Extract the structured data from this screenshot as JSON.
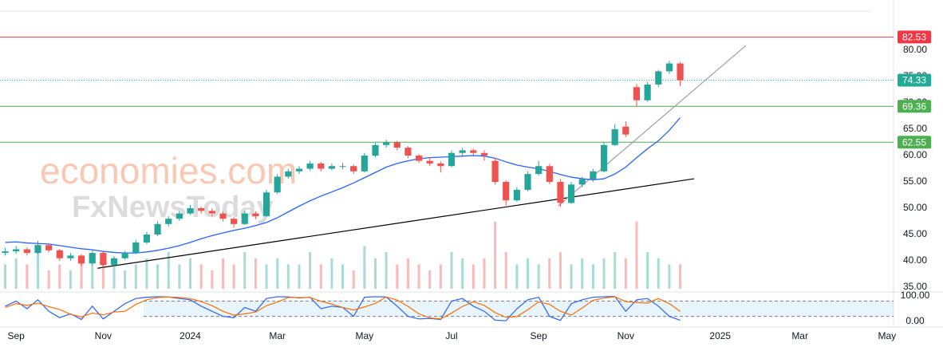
{
  "chart_data": {
    "type": "candlestick",
    "watermark": [
      "economies.com",
      "FxNewsToday"
    ],
    "xlim": [
      -0.37,
      20.15
    ],
    "xticks": [
      {
        "value": 0,
        "label": "Sep"
      },
      {
        "value": 2,
        "label": "Nov"
      },
      {
        "value": 4,
        "label": "2024"
      },
      {
        "value": 6,
        "label": "Mar"
      },
      {
        "value": 8,
        "label": "May"
      },
      {
        "value": 10,
        "label": "Jul"
      },
      {
        "value": 12,
        "label": "Sep"
      },
      {
        "value": 14,
        "label": "Nov"
      },
      {
        "value": 16.17,
        "label": "2025"
      },
      {
        "value": 18,
        "label": "Mar"
      },
      {
        "value": 20,
        "label": "May"
      }
    ],
    "ylim": [
      34.85,
      89.55
    ],
    "yticks": [
      {
        "value": 35,
        "label": "35.00"
      },
      {
        "value": 40,
        "label": "40.00"
      },
      {
        "value": 45,
        "label": "45.00"
      },
      {
        "value": 50,
        "label": "50.00"
      },
      {
        "value": 55,
        "label": "55.00"
      },
      {
        "value": 60,
        "label": "60.00"
      },
      {
        "value": 65,
        "label": "65.00"
      },
      {
        "value": 70,
        "label": "70.00"
      },
      {
        "value": 75,
        "label": "75.00"
      },
      {
        "value": 80,
        "label": "80.00"
      }
    ],
    "grid": false,
    "up_color": "#26a69a",
    "down_color": "#ef5350",
    "x": [
      -0.25,
      0,
      0.25,
      0.5,
      0.75,
      1,
      1.25,
      1.5,
      1.75,
      2,
      2.25,
      2.5,
      2.75,
      3,
      3.25,
      3.5,
      3.75,
      4,
      4.25,
      4.5,
      4.75,
      5,
      5.25,
      5.5,
      5.75,
      6,
      6.25,
      6.5,
      6.75,
      7,
      7.25,
      7.5,
      7.75,
      8,
      8.25,
      8.5,
      8.75,
      9,
      9.25,
      9.5,
      9.75,
      10,
      10.25,
      10.5,
      10.75,
      11,
      11.25,
      11.5,
      11.75,
      12,
      12.25,
      12.5,
      12.75,
      13,
      13.25,
      13.5,
      13.75,
      14,
      14.25,
      14.5,
      14.75,
      15,
      15.25
    ],
    "ohlc": [
      [
        41.5,
        42.5,
        41.0,
        41.8
      ],
      [
        41.8,
        42.8,
        41.3,
        42.2
      ],
      [
        42.2,
        42.6,
        41.0,
        41.5
      ],
      [
        41.5,
        43.8,
        41.3,
        43.0
      ],
      [
        43.0,
        43.3,
        41.6,
        42.0
      ],
      [
        42.0,
        42.3,
        40.0,
        40.5
      ],
      [
        40.5,
        41.5,
        40.0,
        41.0
      ],
      [
        41.0,
        41.3,
        39.0,
        39.5
      ],
      [
        39.5,
        42.0,
        39.2,
        41.5
      ],
      [
        41.5,
        41.8,
        38.6,
        39.2
      ],
      [
        39.2,
        40.9,
        39.0,
        40.5
      ],
      [
        40.5,
        41.9,
        40.2,
        41.5
      ],
      [
        41.5,
        44.0,
        41.3,
        43.5
      ],
      [
        43.5,
        45.5,
        43.2,
        45.0
      ],
      [
        45.0,
        47.5,
        44.7,
        47.0
      ],
      [
        47.0,
        48.5,
        46.5,
        48.0
      ],
      [
        48.0,
        49.5,
        47.6,
        49.0
      ],
      [
        49.0,
        50.6,
        48.7,
        50.0
      ],
      [
        50.0,
        50.3,
        49.0,
        49.5
      ],
      [
        49.5,
        50.0,
        48.5,
        49.0
      ],
      [
        49.0,
        49.4,
        47.5,
        48.0
      ],
      [
        48.0,
        48.3,
        46.3,
        47.0
      ],
      [
        47.0,
        49.5,
        46.8,
        49.0
      ],
      [
        49.0,
        49.4,
        47.9,
        48.5
      ],
      [
        48.5,
        53.5,
        48.3,
        53.0
      ],
      [
        53.0,
        56.5,
        52.7,
        56.0
      ],
      [
        56.0,
        57.5,
        55.6,
        57.0
      ],
      [
        57.0,
        58.0,
        56.5,
        57.5
      ],
      [
        57.5,
        59.0,
        57.2,
        58.5
      ],
      [
        58.5,
        58.8,
        57.0,
        57.5
      ],
      [
        57.5,
        58.5,
        57.2,
        58.0
      ],
      [
        58.0,
        58.6,
        57.4,
        58.0
      ],
      [
        58.0,
        58.3,
        56.5,
        57.0
      ],
      [
        57.0,
        60.5,
        56.8,
        60.0
      ],
      [
        60.0,
        62.4,
        59.7,
        62.0
      ],
      [
        62.0,
        63.0,
        61.5,
        62.5
      ],
      [
        62.5,
        62.8,
        61.0,
        61.5
      ],
      [
        61.5,
        61.8,
        59.5,
        60.0
      ],
      [
        60.0,
        60.3,
        58.6,
        59.0
      ],
      [
        59.0,
        59.5,
        58.0,
        58.5
      ],
      [
        58.5,
        58.9,
        56.8,
        58.0
      ],
      [
        58.0,
        61.0,
        57.8,
        60.5
      ],
      [
        60.5,
        61.5,
        60.0,
        61.0
      ],
      [
        61.0,
        61.3,
        59.8,
        60.5
      ],
      [
        60.5,
        61.0,
        59.0,
        60.0
      ],
      [
        59.0,
        59.5,
        54.5,
        55.0
      ],
      [
        55.0,
        55.3,
        50.5,
        51.5
      ],
      [
        51.5,
        54.0,
        51.2,
        53.5
      ],
      [
        53.5,
        57.0,
        53.2,
        56.5
      ],
      [
        56.5,
        59.0,
        56.2,
        58.0
      ],
      [
        58.0,
        58.4,
        54.6,
        55.0
      ],
      [
        55.0,
        55.5,
        50.3,
        51.0
      ],
      [
        51.0,
        55.0,
        50.8,
        54.5
      ],
      [
        54.5,
        56.0,
        54.0,
        55.5
      ],
      [
        55.5,
        57.5,
        55.0,
        57.0
      ],
      [
        57.0,
        62.5,
        56.8,
        62.0
      ],
      [
        62.0,
        66.0,
        61.8,
        65.0
      ],
      [
        65.5,
        66.5,
        63.5,
        64.0
      ],
      [
        73.0,
        73.6,
        69.3,
        70.5
      ],
      [
        70.5,
        74.0,
        70.2,
        73.5
      ],
      [
        73.5,
        76.3,
        73.0,
        76.0
      ],
      [
        76.0,
        78.0,
        75.5,
        77.5
      ],
      [
        77.5,
        77.8,
        73.2,
        74.3
      ]
    ],
    "volume": [
      4,
      5,
      4,
      6,
      3,
      4,
      3,
      5,
      4,
      6,
      4,
      3,
      4,
      5,
      4,
      6,
      4,
      5,
      4,
      3,
      5,
      4,
      6,
      5,
      4,
      5,
      4,
      4,
      6,
      4,
      5,
      4,
      3,
      7,
      5,
      6,
      4,
      5,
      4,
      3,
      4,
      6,
      5,
      4,
      5,
      11,
      6,
      4,
      5,
      4,
      5,
      6,
      4,
      5,
      4,
      5,
      6,
      5,
      11,
      6,
      5,
      4,
      4
    ],
    "volume_ylim": [
      0,
      12
    ],
    "ma": {
      "color": "#2962ff",
      "values": [
        43.5,
        43.6,
        43.4,
        43.3,
        43.2,
        42.9,
        42.6,
        42.3,
        42.1,
        41.8,
        41.6,
        41.5,
        41.5,
        41.7,
        42.0,
        42.4,
        42.9,
        43.5,
        44.2,
        44.8,
        45.3,
        45.8,
        46.2,
        46.7,
        47.3,
        48.2,
        49.3,
        50.4,
        51.4,
        52.3,
        53.1,
        53.9,
        54.8,
        55.8,
        56.8,
        57.8,
        58.5,
        59.0,
        59.4,
        59.6,
        59.7,
        59.8,
        59.9,
        60.0,
        59.9,
        59.5,
        58.8,
        58.2,
        57.8,
        57.5,
        57.0,
        56.4,
        55.9,
        55.6,
        55.4,
        55.6,
        56.5,
        57.8,
        59.6,
        61.3,
        62.8,
        64.8,
        67.2
      ]
    },
    "levels": [
      {
        "value": 82.53,
        "color": "#f23645",
        "style": "solid"
      },
      {
        "value": 74.33,
        "color": "#22ab94",
        "style": "dotted"
      },
      {
        "value": 69.36,
        "color": "#4caf50",
        "style": "solid"
      },
      {
        "value": 62.55,
        "color": "#4caf50",
        "style": "solid"
      }
    ],
    "trendlines": [
      {
        "x": [
          1.87,
          15.57
        ],
        "y": [
          38.6,
          55.6
        ],
        "color": "#000000"
      },
      {
        "x": [
          12.45,
          16.76
        ],
        "y": [
          50.45,
          80.9
        ],
        "color": "#9e9e9e"
      }
    ],
    "stochastic": {
      "ylim": [
        0,
        100
      ],
      "yticks": [
        {
          "value": 100,
          "label": "100.00"
        },
        {
          "value": 0,
          "label": "0.00"
        }
      ],
      "levels": [
        80,
        20
      ],
      "series": [
        {
          "color": "#2962ff",
          "values": [
            60,
            80,
            50,
            85,
            40,
            15,
            30,
            8,
            60,
            10,
            40,
            70,
            90,
            95,
            97,
            96,
            90,
            85,
            60,
            40,
            20,
            15,
            55,
            40,
            90,
            97,
            96,
            92,
            95,
            50,
            60,
            55,
            20,
            95,
            97,
            96,
            60,
            20,
            10,
            12,
            8,
            80,
            90,
            60,
            40,
            5,
            3,
            50,
            85,
            95,
            20,
            4,
            70,
            85,
            95,
            97,
            98,
            40,
            85,
            90,
            60,
            20,
            5
          ]
        },
        {
          "color": "#ff6d00",
          "values": [
            55,
            70,
            63,
            72,
            58,
            47,
            28,
            18,
            33,
            26,
            37,
            40,
            67,
            85,
            94,
            96,
            94,
            90,
            78,
            62,
            40,
            25,
            30,
            37,
            62,
            76,
            94,
            94,
            94,
            79,
            68,
            55,
            45,
            57,
            71,
            96,
            84,
            59,
            30,
            14,
            10,
            33,
            59,
            77,
            63,
            35,
            16,
            19,
            46,
            77,
            67,
            40,
            25,
            53,
            83,
            92,
            97,
            78,
            74,
            72,
            90,
            70,
            40
          ]
        }
      ]
    }
  }
}
